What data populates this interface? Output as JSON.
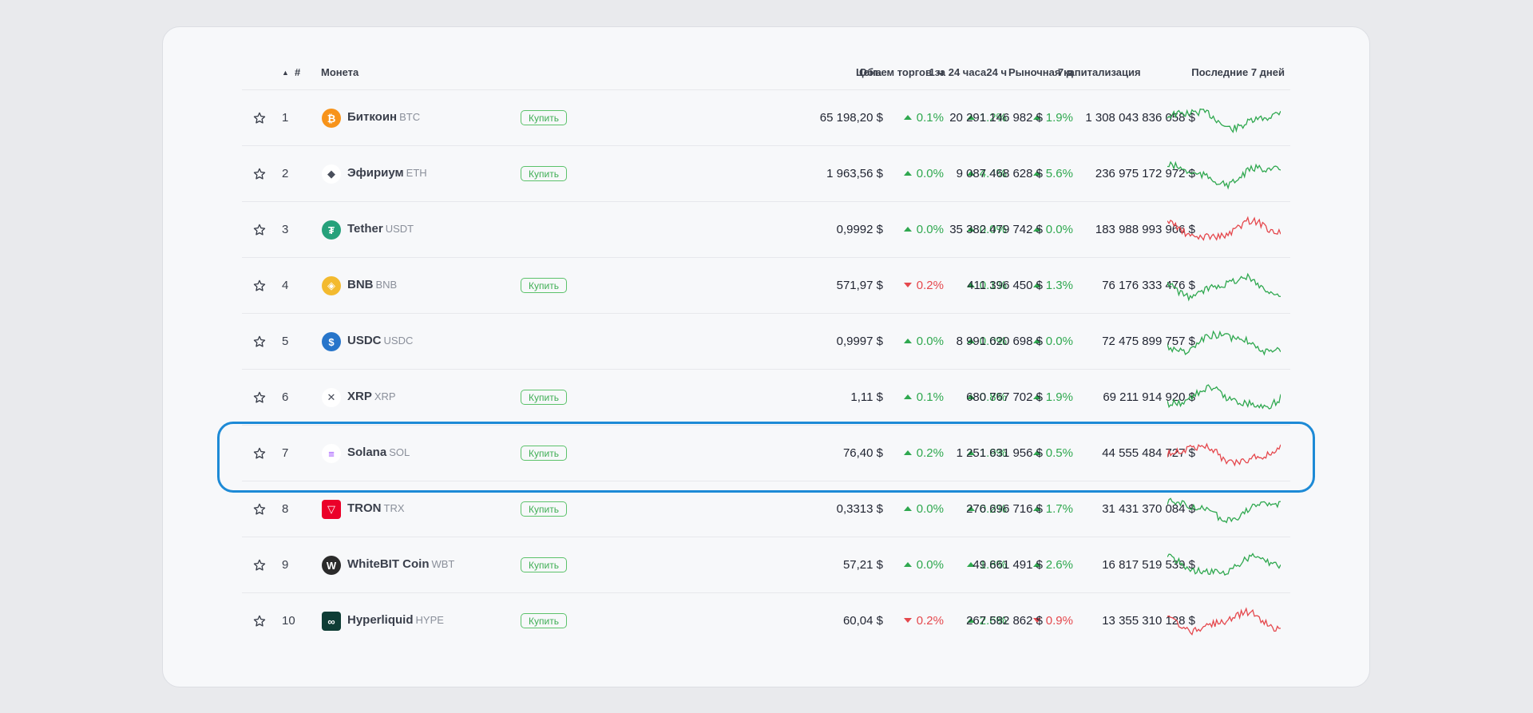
{
  "header": {
    "rank": "#",
    "coin": "Монета",
    "price": "Цена",
    "h1": "1 ч",
    "h24": "24 ч",
    "d7": "7 д",
    "volume": "Объем торгов за 24 часа",
    "cap": "Рыночная капитализация",
    "last7": "Последние 7 дней"
  },
  "colors": {
    "up": "#2fa84f",
    "down": "#e5484d",
    "highlight": "#1d8ad6"
  },
  "rows": [
    {
      "rank": "1",
      "name": "Биткоин",
      "ticker": "BTC",
      "buy": "Купить",
      "price": "65 198,20 $",
      "h1": "0.1%",
      "h1_dir": "up",
      "h24": "1.2%",
      "h24_dir": "up",
      "d7": "1.9%",
      "d7_dir": "up",
      "volume": "20 291 146 982 $",
      "cap": "1 308 043 836 058 $",
      "trend": "up",
      "icon": "bitcoin-icon",
      "logo_color": "#f7931a",
      "logo_glyph": "₿"
    },
    {
      "rank": "2",
      "name": "Эфириум",
      "ticker": "ETH",
      "buy": "Купить",
      "price": "1 963,56 $",
      "h1": "0.0%",
      "h1_dir": "up",
      "h24": "4.4%",
      "h24_dir": "up",
      "d7": "5.6%",
      "d7_dir": "up",
      "volume": "9 087 468 628 $",
      "cap": "236 975 172 972 $",
      "trend": "up",
      "icon": "ethereum-icon",
      "logo_color": "#ffffff",
      "logo_glyph": "◆"
    },
    {
      "rank": "3",
      "name": "Tether",
      "ticker": "USDT",
      "buy": "",
      "price": "0,9992 $",
      "h1": "0.0%",
      "h1_dir": "up",
      "h24": "0.0%",
      "h24_dir": "up",
      "d7": "0.0%",
      "d7_dir": "up",
      "volume": "35 382 479 742 $",
      "cap": "183 988 993 966 $",
      "trend": "down",
      "icon": "tether-icon",
      "logo_color": "#26a17b",
      "logo_glyph": "₮"
    },
    {
      "rank": "4",
      "name": "BNB",
      "ticker": "BNB",
      "buy": "Купить",
      "price": "571,97 $",
      "h1": "0.2%",
      "h1_dir": "down",
      "h24": "0.1%",
      "h24_dir": "up",
      "d7": "1.3%",
      "d7_dir": "up",
      "volume": "411 396 450 $",
      "cap": "76 176 333 476 $",
      "trend": "up",
      "icon": "bnb-icon",
      "logo_color": "#f3ba2f",
      "logo_glyph": "◈"
    },
    {
      "rank": "5",
      "name": "USDC",
      "ticker": "USDC",
      "buy": "",
      "price": "0,9997 $",
      "h1": "0.0%",
      "h1_dir": "up",
      "h24": "0.0%",
      "h24_dir": "up",
      "d7": "0.0%",
      "d7_dir": "up",
      "volume": "8 991 620 698 $",
      "cap": "72 475 899 757 $",
      "trend": "up",
      "icon": "usdc-icon",
      "logo_color": "#2775ca",
      "logo_glyph": "$"
    },
    {
      "rank": "6",
      "name": "XRP",
      "ticker": "XRP",
      "buy": "Купить",
      "price": "1,11 $",
      "h1": "0.1%",
      "h1_dir": "up",
      "h24": "0.8%",
      "h24_dir": "up",
      "d7": "1.9%",
      "d7_dir": "up",
      "volume": "680 767 702 $",
      "cap": "69 211 914 920 $",
      "trend": "up",
      "icon": "xrp-icon",
      "logo_color": "#ffffff",
      "logo_glyph": "✕"
    },
    {
      "rank": "7",
      "name": "Solana",
      "ticker": "SOL",
      "buy": "Купить",
      "price": "76,40 $",
      "h1": "0.2%",
      "h1_dir": "up",
      "h24": "1.9%",
      "h24_dir": "up",
      "d7": "0.5%",
      "d7_dir": "up",
      "volume": "1 251 631 956 $",
      "cap": "44 555 484 727 $",
      "trend": "down",
      "icon": "solana-icon",
      "logo_color": "#ffffff",
      "logo_glyph": "≡"
    },
    {
      "rank": "8",
      "name": "TRON",
      "ticker": "TRX",
      "buy": "Купить",
      "price": "0,3313 $",
      "h1": "0.0%",
      "h1_dir": "up",
      "h24": "0.2%",
      "h24_dir": "up",
      "d7": "1.7%",
      "d7_dir": "up",
      "volume": "276 696 716 $",
      "cap": "31 431 370 084 $",
      "trend": "up",
      "icon": "tron-icon",
      "logo_color": "#eb0029",
      "logo_glyph": "▽"
    },
    {
      "rank": "9",
      "name": "WhiteBIT Coin",
      "ticker": "WBT",
      "buy": "Купить",
      "price": "57,21 $",
      "h1": "0.0%",
      "h1_dir": "up",
      "h24": "1.8%",
      "h24_dir": "up",
      "d7": "2.6%",
      "d7_dir": "up",
      "volume": "49 661 491 $",
      "cap": "16 817 519 539 $",
      "trend": "up",
      "icon": "whitebit-icon",
      "logo_color": "#2b2b2b",
      "logo_glyph": "W"
    },
    {
      "rank": "10",
      "name": "Hyperliquid",
      "ticker": "HYPE",
      "buy": "Купить",
      "price": "60,04 $",
      "h1": "0.2%",
      "h1_dir": "down",
      "h24": "2.6%",
      "h24_dir": "up",
      "d7": "0.9%",
      "d7_dir": "down",
      "volume": "267 582 862 $",
      "cap": "13 355 310 128 $",
      "trend": "down",
      "icon": "hyperliquid-icon",
      "logo_color": "#0f3d35",
      "logo_glyph": "∞"
    }
  ]
}
